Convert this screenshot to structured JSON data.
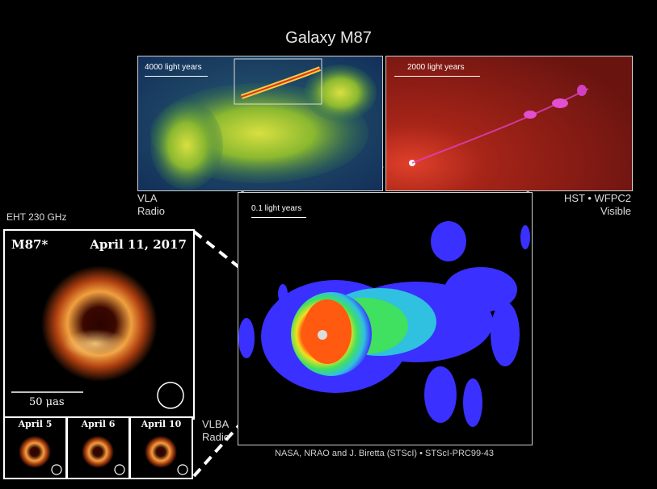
{
  "title": "Galaxy M87",
  "vla_panel": {
    "scale": "4000 light years",
    "label_line1": "VLA",
    "label_line2": "Radio"
  },
  "hst_panel": {
    "scale": "2000 light years",
    "label_line1": "HST • WFPC2",
    "label_line2": "Visible"
  },
  "vlba_panel": {
    "scale": "0.1 light years",
    "label_line1": "VLBA",
    "label_line2": "Radio"
  },
  "credit": "NASA, NRAO and J. Biretta (STScI) • STScI-PRC99-43",
  "eht": {
    "header": "EHT 230 GHz",
    "object": "M87*",
    "date": "April 11, 2017",
    "scale": "50 μas",
    "thumbs": [
      "April 5",
      "April 6",
      "April 10"
    ]
  },
  "colors": {
    "background": "#000000",
    "panel_border": "#cfcfcf",
    "ring": "#f0a040"
  }
}
